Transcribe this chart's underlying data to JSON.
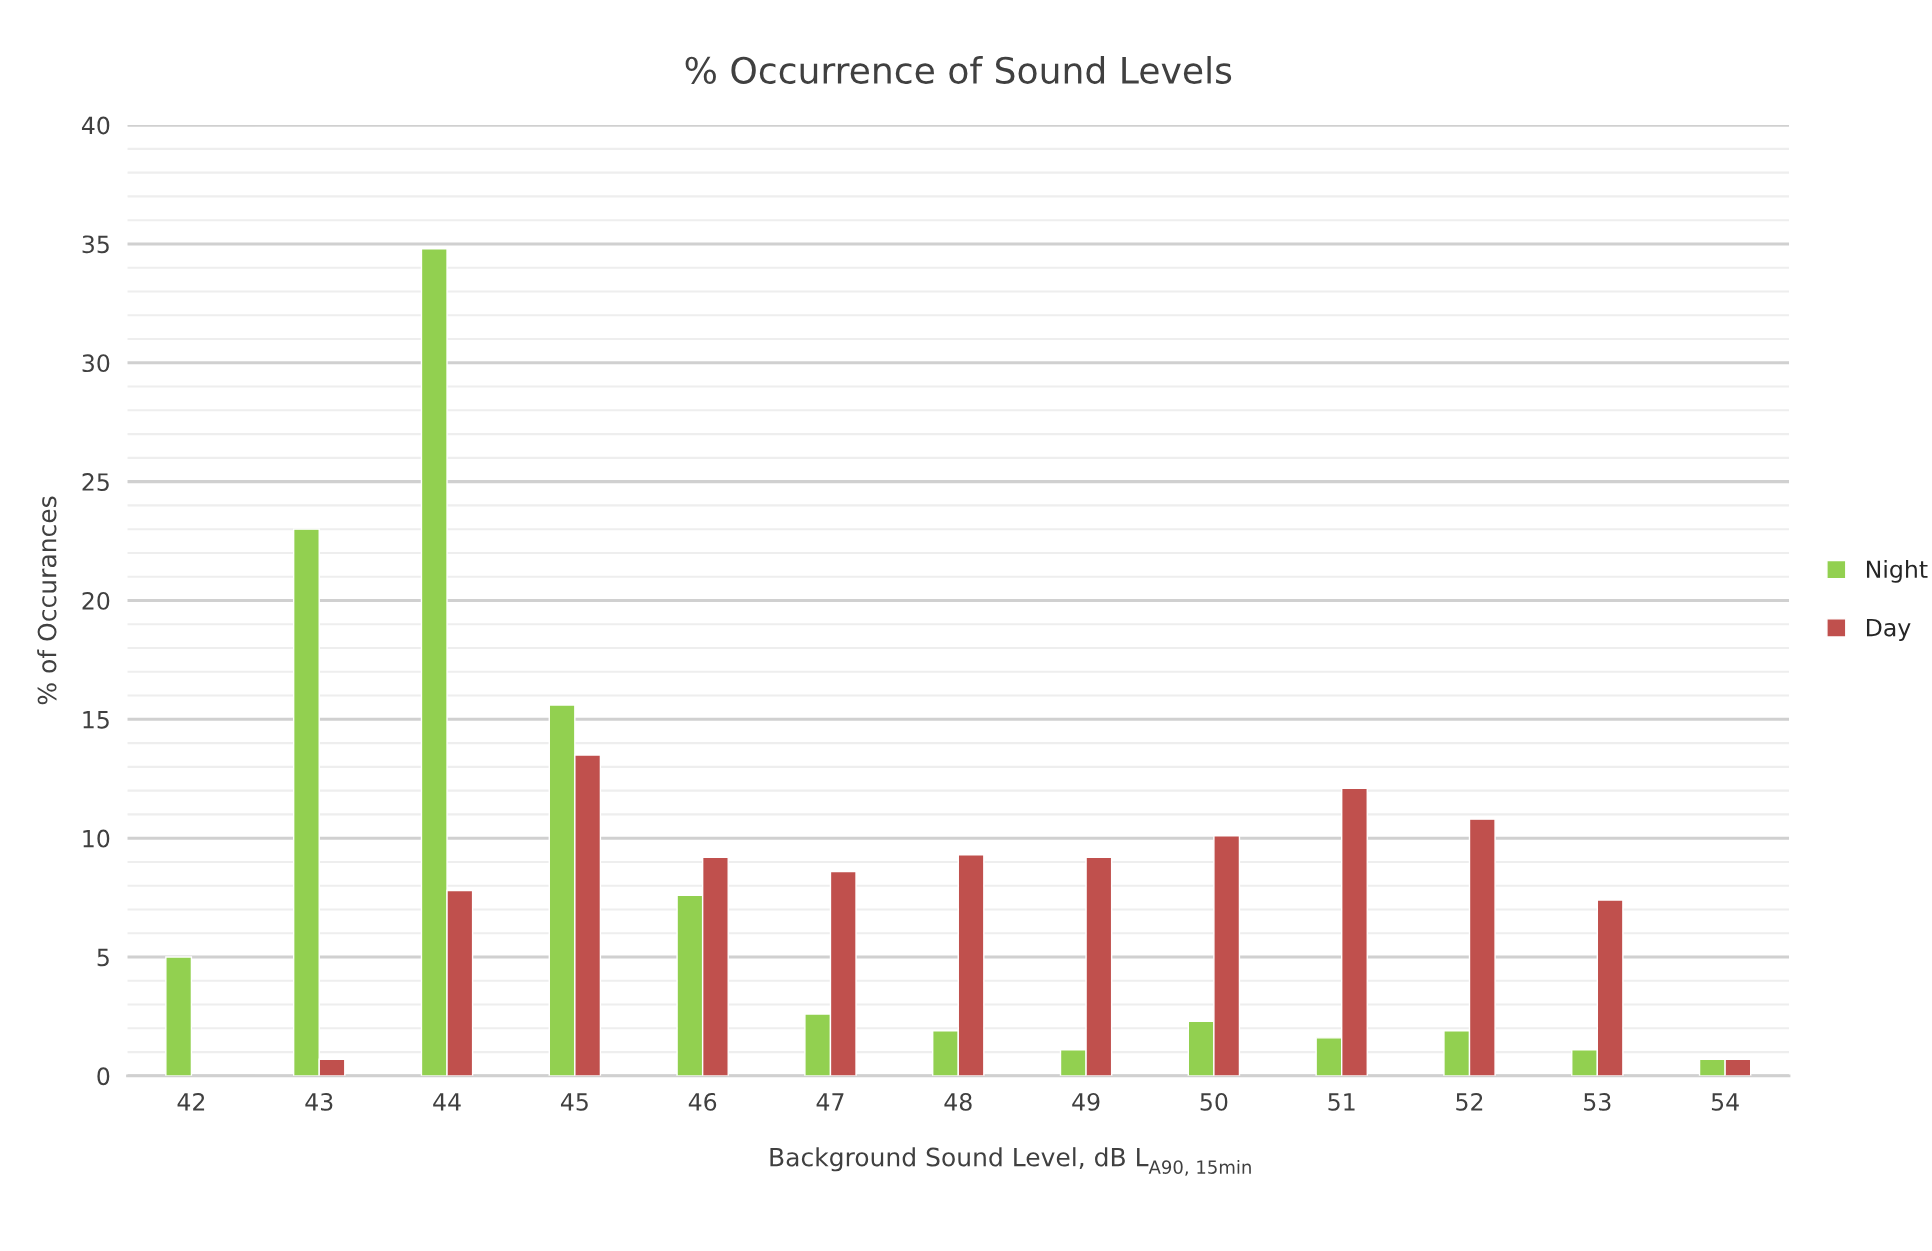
{
  "chart_data": {
    "type": "bar",
    "title": "% Occurrence of Sound Levels",
    "xlabel": "Background Sound Level, dB L$_{A90, 15min}$",
    "ylabel": "% of Occurances",
    "categories": [
      "42",
      "43",
      "44",
      "45",
      "46",
      "47",
      "48",
      "49",
      "50",
      "51",
      "52",
      "53",
      "54"
    ],
    "series": [
      {
        "name": "Night",
        "color": "#92d050",
        "values": [
          5.0,
          23.0,
          34.8,
          15.6,
          7.6,
          2.6,
          1.9,
          1.1,
          2.3,
          1.6,
          1.9,
          1.1,
          0.7
        ]
      },
      {
        "name": "Day",
        "color": "#c0504d",
        "values": [
          null,
          0.7,
          7.8,
          13.5,
          9.2,
          8.6,
          9.3,
          9.2,
          10.1,
          12.1,
          10.8,
          7.4,
          0.7
        ]
      }
    ],
    "ylim": [
      0,
      40
    ],
    "yticks": [
      0,
      {
        "value": 1,
        "label": null
      },
      {
        "value": 2,
        "label": null
      },
      {
        "value": 3,
        "label": null
      },
      {
        "value": 4,
        "label": null
      },
      5,
      {
        "value": 6,
        "label": null
      },
      {
        "value": 7,
        "label": null
      },
      {
        "value": 8,
        "label": null
      },
      {
        "value": 9,
        "label": null
      },
      10,
      {
        "value": 11,
        "label": null
      },
      {
        "value": 12,
        "label": null
      },
      {
        "value": 13,
        "label": null
      },
      {
        "value": 14,
        "label": null
      },
      15,
      {
        "value": 16,
        "label": null
      },
      {
        "value": 17,
        "label": null
      },
      {
        "value": 18,
        "label": null
      },
      {
        "value": 19,
        "label": null
      },
      20,
      {
        "value": 21,
        "label": null
      },
      {
        "value": 22,
        "label": null
      },
      {
        "value": 23,
        "label": null
      },
      {
        "value": 24,
        "label": null
      },
      25,
      {
        "value": 26,
        "label": null
      },
      {
        "value": 27,
        "label": null
      },
      {
        "value": 28,
        "label": null
      },
      {
        "value": 29,
        "label": null
      },
      30,
      {
        "value": 31,
        "label": null
      },
      {
        "value": 32,
        "label": null
      },
      {
        "value": 33,
        "label": null
      },
      {
        "value": 34,
        "label": null
      },
      35,
      {
        "value": 36,
        "label": null
      },
      {
        "value": 37,
        "label": null
      },
      {
        "value": 38,
        "label": null
      },
      {
        "value": 39,
        "label": null
      },
      40
    ],
    "grid": "y",
    "legend": "right"
  }
}
